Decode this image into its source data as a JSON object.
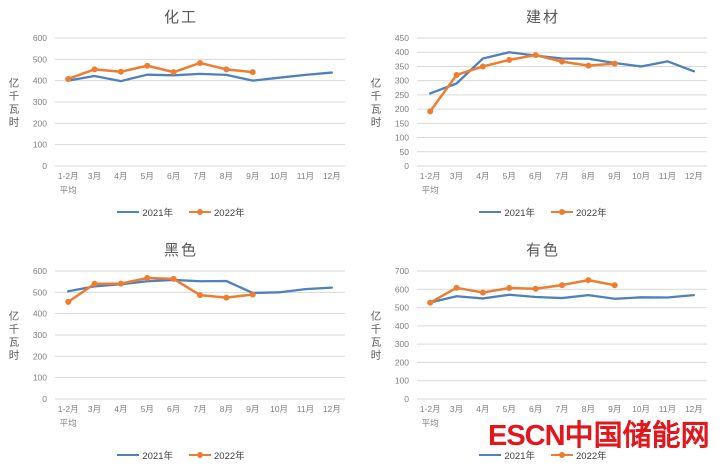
{
  "watermark": {
    "latin": "ESCN",
    "cjk": "中国储能网",
    "color": "#e3161b"
  },
  "axis": {
    "unit_label": "亿千瓦时",
    "first_category_line2": "平均"
  },
  "legend": {
    "items": [
      {
        "label": "2021年",
        "color": "#4e81bd"
      },
      {
        "label": "2022年",
        "color": "#ed7d31"
      }
    ]
  },
  "colors": {
    "series_2021": "#4e81bd",
    "series_2022": "#ed7d31",
    "gridline": "#d9d9d9",
    "tick_text": "#808080",
    "title_text": "#595959"
  },
  "chart_data": [
    {
      "type": "line",
      "title": "化工",
      "ylabel": "亿千瓦时",
      "ylim": [
        0,
        600
      ],
      "ytick_step": 100,
      "grid": true,
      "legend_position": "bottom",
      "categories": [
        "1-2月",
        "3月",
        "4月",
        "5月",
        "6月",
        "7月",
        "8月",
        "9月",
        "10月",
        "11月",
        "12月"
      ],
      "series": [
        {
          "name": "2021年",
          "color": "#4e81bd",
          "marker": "none",
          "values": [
            400,
            422,
            398,
            428,
            425,
            432,
            427,
            400,
            414,
            427,
            438
          ]
        },
        {
          "name": "2022年",
          "color": "#ed7d31",
          "marker": "circle",
          "values": [
            408,
            453,
            442,
            470,
            440,
            483,
            453,
            440
          ]
        }
      ]
    },
    {
      "type": "line",
      "title": "建材",
      "ylabel": "亿千瓦时",
      "ylim": [
        0,
        450
      ],
      "ytick_step": 50,
      "grid": true,
      "legend_position": "bottom",
      "categories": [
        "1-2月",
        "3月",
        "4月",
        "5月",
        "6月",
        "7月",
        "8月",
        "9月",
        "10月",
        "11月",
        "12月"
      ],
      "series": [
        {
          "name": "2021年",
          "color": "#4e81bd",
          "marker": "none",
          "values": [
            255,
            290,
            378,
            400,
            388,
            378,
            377,
            362,
            350,
            368,
            333
          ]
        },
        {
          "name": "2022年",
          "color": "#ed7d31",
          "marker": "circle",
          "values": [
            192,
            320,
            350,
            373,
            390,
            367,
            353,
            360
          ]
        }
      ]
    },
    {
      "type": "line",
      "title": "黑色",
      "ylabel": "亿千瓦时",
      "ylim": [
        0,
        600
      ],
      "ytick_step": 100,
      "grid": true,
      "legend_position": "bottom",
      "categories": [
        "1-2月",
        "3月",
        "4月",
        "5月",
        "6月",
        "7月",
        "8月",
        "9月",
        "10月",
        "11月",
        "12月"
      ],
      "series": [
        {
          "name": "2021年",
          "color": "#4e81bd",
          "marker": "none",
          "values": [
            505,
            528,
            538,
            552,
            558,
            552,
            553,
            497,
            500,
            515,
            522
          ]
        },
        {
          "name": "2022年",
          "color": "#ed7d31",
          "marker": "circle",
          "values": [
            455,
            540,
            541,
            567,
            563,
            487,
            475,
            490
          ]
        }
      ]
    },
    {
      "type": "line",
      "title": "有色",
      "ylabel": "亿千瓦时",
      "ylim": [
        0,
        700
      ],
      "ytick_step": 100,
      "grid": true,
      "legend_position": "bottom",
      "categories": [
        "1-2月",
        "3月",
        "4月",
        "5月",
        "6月",
        "7月",
        "8月",
        "9月",
        "10月",
        "11月",
        "12月"
      ],
      "series": [
        {
          "name": "2021年",
          "color": "#4e81bd",
          "marker": "none",
          "values": [
            528,
            562,
            550,
            570,
            558,
            552,
            568,
            548,
            556,
            555,
            568
          ]
        },
        {
          "name": "2022年",
          "color": "#ed7d31",
          "marker": "circle",
          "values": [
            527,
            608,
            582,
            607,
            603,
            623,
            650,
            622
          ]
        }
      ]
    }
  ]
}
